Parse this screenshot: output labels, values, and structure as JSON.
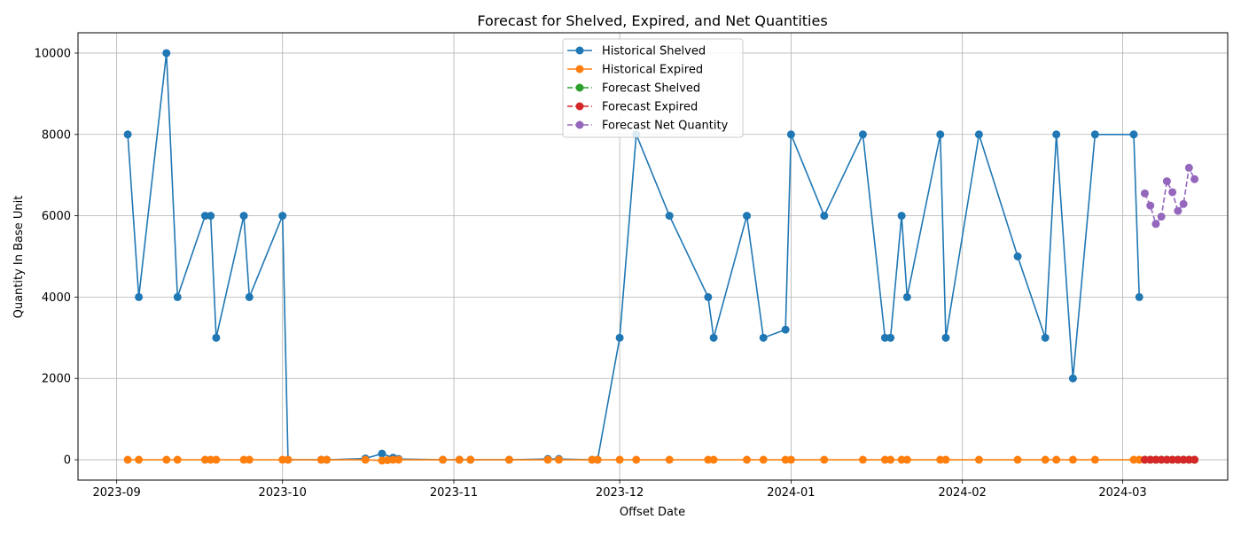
{
  "chart_data": {
    "type": "line",
    "title": "Forecast for Shelved, Expired, and Net Quantities",
    "xlabel": "Offset Date",
    "ylabel": "Quantity In Base Unit",
    "x_axis_type": "date",
    "xlim": [
      "2023-08-25",
      "2024-03-20"
    ],
    "ylim": [
      -500,
      10500
    ],
    "grid": true,
    "legend_position": "top-center",
    "x_tick_labels": [
      "2023-09",
      "2023-10",
      "2023-11",
      "2023-12",
      "2024-01",
      "2024-02",
      "2024-03"
    ],
    "x_tick_values": [
      "2023-09-01",
      "2023-10-01",
      "2023-11-01",
      "2023-12-01",
      "2024-01-01",
      "2024-02-01",
      "2024-03-01"
    ],
    "y_tick_labels": [
      "0",
      "2000",
      "4000",
      "6000",
      "8000",
      "10000"
    ],
    "y_tick_values": [
      0,
      2000,
      4000,
      6000,
      8000,
      10000
    ],
    "series": [
      {
        "name": "Historical Shelved",
        "color": "#1f77b4",
        "line_style": "solid",
        "marker": "circle",
        "x": [
          "2023-09-03",
          "2023-09-05",
          "2023-09-10",
          "2023-09-12",
          "2023-09-17",
          "2023-09-18",
          "2023-09-19",
          "2023-09-24",
          "2023-09-25",
          "2023-10-01",
          "2023-10-02",
          "2023-10-08",
          "2023-10-09",
          "2023-10-16",
          "2023-10-19",
          "2023-10-21",
          "2023-10-22",
          "2023-10-30",
          "2023-11-02",
          "2023-11-04",
          "2023-11-11",
          "2023-11-18",
          "2023-11-20",
          "2023-11-26",
          "2023-11-27",
          "2023-12-01",
          "2023-12-04",
          "2023-12-10",
          "2023-12-17",
          "2023-12-18",
          "2023-12-24",
          "2023-12-27",
          "2023-12-31",
          "2024-01-01",
          "2024-01-07",
          "2024-01-14",
          "2024-01-18",
          "2024-01-19",
          "2024-01-21",
          "2024-01-22",
          "2024-01-28",
          "2024-01-29",
          "2024-02-04",
          "2024-02-11",
          "2024-02-16",
          "2024-02-18",
          "2024-02-21",
          "2024-02-25",
          "2024-03-03",
          "2024-03-04"
        ],
        "values": [
          8000,
          4000,
          10000,
          4000,
          6000,
          6000,
          3000,
          6000,
          4000,
          6000,
          0,
          0,
          0,
          30,
          150,
          50,
          20,
          0,
          0,
          0,
          0,
          20,
          20,
          0,
          0,
          3000,
          8000,
          6000,
          4000,
          3000,
          6000,
          3000,
          3200,
          8000,
          6000,
          8000,
          3000,
          3000,
          6000,
          4000,
          8000,
          3000,
          8000,
          5000,
          3000,
          8000,
          2000,
          8000,
          8000,
          4000
        ]
      },
      {
        "name": "Historical Expired",
        "color": "#ff7f0e",
        "line_style": "solid",
        "marker": "circle",
        "x": [
          "2023-09-03",
          "2023-09-05",
          "2023-09-10",
          "2023-09-12",
          "2023-09-17",
          "2023-09-18",
          "2023-09-19",
          "2023-09-24",
          "2023-09-25",
          "2023-10-01",
          "2023-10-02",
          "2023-10-08",
          "2023-10-09",
          "2023-10-16",
          "2023-10-19",
          "2023-10-20",
          "2023-10-21",
          "2023-10-22",
          "2023-10-30",
          "2023-11-02",
          "2023-11-04",
          "2023-11-11",
          "2023-11-18",
          "2023-11-20",
          "2023-11-26",
          "2023-11-27",
          "2023-12-01",
          "2023-12-04",
          "2023-12-10",
          "2023-12-17",
          "2023-12-18",
          "2023-12-24",
          "2023-12-27",
          "2023-12-31",
          "2024-01-01",
          "2024-01-07",
          "2024-01-14",
          "2024-01-18",
          "2024-01-19",
          "2024-01-21",
          "2024-01-22",
          "2024-01-28",
          "2024-01-29",
          "2024-02-04",
          "2024-02-11",
          "2024-02-16",
          "2024-02-18",
          "2024-02-21",
          "2024-02-25",
          "2024-03-03",
          "2024-03-04"
        ],
        "values": [
          0,
          0,
          0,
          0,
          0,
          0,
          0,
          0,
          0,
          0,
          0,
          0,
          0,
          0,
          -20,
          -10,
          0,
          0,
          0,
          0,
          0,
          0,
          0,
          0,
          0,
          0,
          0,
          0,
          0,
          0,
          0,
          0,
          0,
          0,
          0,
          0,
          0,
          0,
          0,
          0,
          0,
          0,
          0,
          0,
          0,
          0,
          0,
          0,
          0,
          0,
          0
        ]
      },
      {
        "name": "Forecast Shelved",
        "color": "#2ca02c",
        "line_style": "dashed",
        "marker": "circle",
        "x": [
          "2024-03-05",
          "2024-03-06",
          "2024-03-07",
          "2024-03-08",
          "2024-03-09",
          "2024-03-10",
          "2024-03-11",
          "2024-03-12",
          "2024-03-13",
          "2024-03-14"
        ],
        "values": [
          0,
          0,
          0,
          0,
          0,
          0,
          0,
          0,
          0,
          0
        ]
      },
      {
        "name": "Forecast Expired",
        "color": "#d62728",
        "line_style": "dashed",
        "marker": "circle",
        "x": [
          "2024-03-05",
          "2024-03-06",
          "2024-03-07",
          "2024-03-08",
          "2024-03-09",
          "2024-03-10",
          "2024-03-11",
          "2024-03-12",
          "2024-03-13",
          "2024-03-14"
        ],
        "values": [
          0,
          0,
          0,
          0,
          0,
          0,
          0,
          0,
          0,
          0
        ]
      },
      {
        "name": "Forecast Net Quantity",
        "color": "#9467bd",
        "line_style": "dashed",
        "marker": "circle",
        "x": [
          "2024-03-05",
          "2024-03-06",
          "2024-03-07",
          "2024-03-08",
          "2024-03-09",
          "2024-03-10",
          "2024-03-11",
          "2024-03-12",
          "2024-03-13",
          "2024-03-14"
        ],
        "values": [
          6550,
          6250,
          5800,
          5980,
          6850,
          6580,
          6120,
          6290,
          7180,
          6900
        ]
      }
    ]
  }
}
